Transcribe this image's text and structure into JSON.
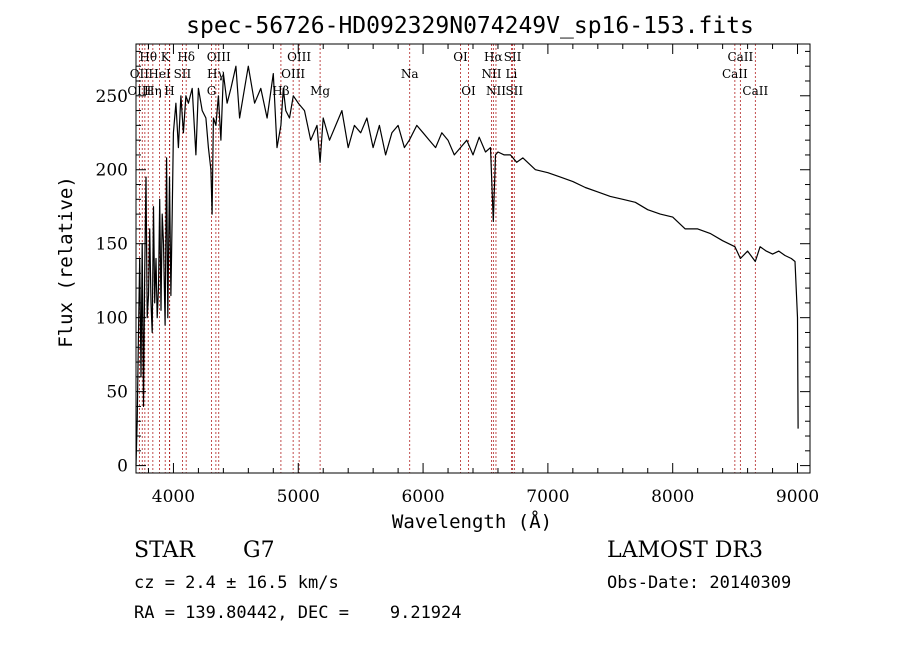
{
  "chart_data": {
    "type": "line",
    "title": "spec-56726-HD092329N074249V_sp16-153.fits",
    "xlabel": "Wavelength (Å)",
    "ylabel": "Flux (relative)",
    "xlim": [
      3700,
      9100
    ],
    "ylim": [
      -5,
      285
    ],
    "xticks": [
      4000,
      5000,
      6000,
      7000,
      8000,
      9000
    ],
    "yticks": [
      0,
      50,
      100,
      150,
      200,
      250
    ],
    "grid": false,
    "series": [
      {
        "name": "flux",
        "x": [
          3700,
          3710,
          3720,
          3730,
          3740,
          3750,
          3760,
          3770,
          3780,
          3790,
          3800,
          3810,
          3820,
          3830,
          3840,
          3850,
          3860,
          3870,
          3880,
          3890,
          3900,
          3910,
          3920,
          3933,
          3945,
          3955,
          3968,
          3980,
          3990,
          4000,
          4020,
          4040,
          4060,
          4080,
          4100,
          4120,
          4150,
          4180,
          4200,
          4230,
          4260,
          4280,
          4300,
          4310,
          4320,
          4340,
          4360,
          4380,
          4400,
          4430,
          4460,
          4500,
          4530,
          4560,
          4600,
          4650,
          4700,
          4750,
          4800,
          4830,
          4861,
          4880,
          4900,
          4930,
          4960,
          5000,
          5050,
          5100,
          5150,
          5175,
          5200,
          5250,
          5300,
          5350,
          5400,
          5450,
          5500,
          5550,
          5600,
          5650,
          5700,
          5750,
          5800,
          5850,
          5890,
          5950,
          6000,
          6050,
          6100,
          6150,
          6200,
          6250,
          6300,
          6350,
          6400,
          6450,
          6500,
          6540,
          6563,
          6580,
          6600,
          6650,
          6700,
          6750,
          6800,
          6900,
          7000,
          7100,
          7200,
          7300,
          7400,
          7500,
          7600,
          7700,
          7800,
          7900,
          8000,
          8100,
          8200,
          8300,
          8400,
          8498,
          8542,
          8600,
          8662,
          8700,
          8750,
          8800,
          8850,
          8900,
          8950,
          8980,
          9000,
          9005
        ],
        "values": [
          0,
          30,
          90,
          140,
          60,
          150,
          40,
          130,
          195,
          100,
          115,
          160,
          110,
          90,
          175,
          110,
          140,
          100,
          120,
          180,
          105,
          170,
          150,
          95,
          208,
          100,
          195,
          115,
          170,
          225,
          245,
          215,
          250,
          225,
          250,
          245,
          255,
          210,
          255,
          240,
          235,
          215,
          200,
          170,
          235,
          230,
          250,
          220,
          265,
          245,
          255,
          270,
          235,
          250,
          270,
          245,
          255,
          235,
          265,
          215,
          230,
          255,
          240,
          235,
          250,
          245,
          240,
          220,
          230,
          205,
          235,
          220,
          230,
          240,
          215,
          230,
          225,
          235,
          215,
          230,
          210,
          225,
          230,
          215,
          220,
          230,
          225,
          220,
          215,
          225,
          220,
          210,
          215,
          220,
          210,
          222,
          212,
          215,
          165,
          210,
          212,
          210,
          210,
          205,
          208,
          200,
          198,
          195,
          192,
          188,
          185,
          182,
          180,
          178,
          173,
          170,
          168,
          160,
          160,
          157,
          152,
          148,
          140,
          145,
          138,
          148,
          145,
          143,
          145,
          142,
          140,
          138,
          100,
          25
        ]
      }
    ],
    "line_markers": [
      {
        "label": "Hθ",
        "x": 3798,
        "row": 1
      },
      {
        "label": "K",
        "x": 3934,
        "row": 1
      },
      {
        "label": "Hδ",
        "x": 4102,
        "row": 1
      },
      {
        "label": "OIII",
        "x": 4363,
        "row": 1
      },
      {
        "label": "OIII",
        "x": 5007,
        "row": 1
      },
      {
        "label": "OI",
        "x": 6300,
        "row": 1
      },
      {
        "label": "Hα",
        "x": 6563,
        "row": 1
      },
      {
        "label": "SII",
        "x": 6717,
        "row": 1
      },
      {
        "label": "CaII",
        "x": 8542,
        "row": 1
      },
      {
        "label": "OII",
        "x": 3727,
        "row": 2
      },
      {
        "label": "HeI",
        "x": 3889,
        "row": 2
      },
      {
        "label": "SII",
        "x": 4072,
        "row": 2
      },
      {
        "label": "Hγ",
        "x": 4340,
        "row": 2
      },
      {
        "label": "OIII",
        "x": 4959,
        "row": 2
      },
      {
        "label": "Na",
        "x": 5893,
        "row": 2
      },
      {
        "label": "NII",
        "x": 6548,
        "row": 2
      },
      {
        "label": "Li",
        "x": 6708,
        "row": 2
      },
      {
        "label": "CaII",
        "x": 8498,
        "row": 2
      },
      {
        "label": "OIII",
        "x": 3727,
        "row": 3
      },
      {
        "label": "Hη",
        "x": 3835,
        "row": 3
      },
      {
        "label": "H",
        "x": 3968,
        "row": 3
      },
      {
        "label": "G",
        "x": 4305,
        "row": 3
      },
      {
        "label": "Hβ",
        "x": 4861,
        "row": 3
      },
      {
        "label": "Mg",
        "x": 5175,
        "row": 3
      },
      {
        "label": "OI",
        "x": 6364,
        "row": 3
      },
      {
        "label": "NII",
        "x": 6584,
        "row": 3
      },
      {
        "label": "SII",
        "x": 6731,
        "row": 3
      },
      {
        "label": "CaII",
        "x": 8662,
        "row": 3
      }
    ],
    "extra_marker_lines": [
      3750,
      3771,
      3889,
      3970
    ]
  },
  "info": {
    "object_class": "STAR",
    "subclass": "G7",
    "redshift": "cz = 2.4 ± 16.5 km/s",
    "coords": "RA = 139.80442, DEC =    9.21924",
    "survey": "LAMOST DR3",
    "obs_date": "Obs-Date: 20140309"
  },
  "colors": {
    "axis": "#000000",
    "spectrum": "#000000",
    "marker_line": "#b22222",
    "background": "#ffffff"
  }
}
